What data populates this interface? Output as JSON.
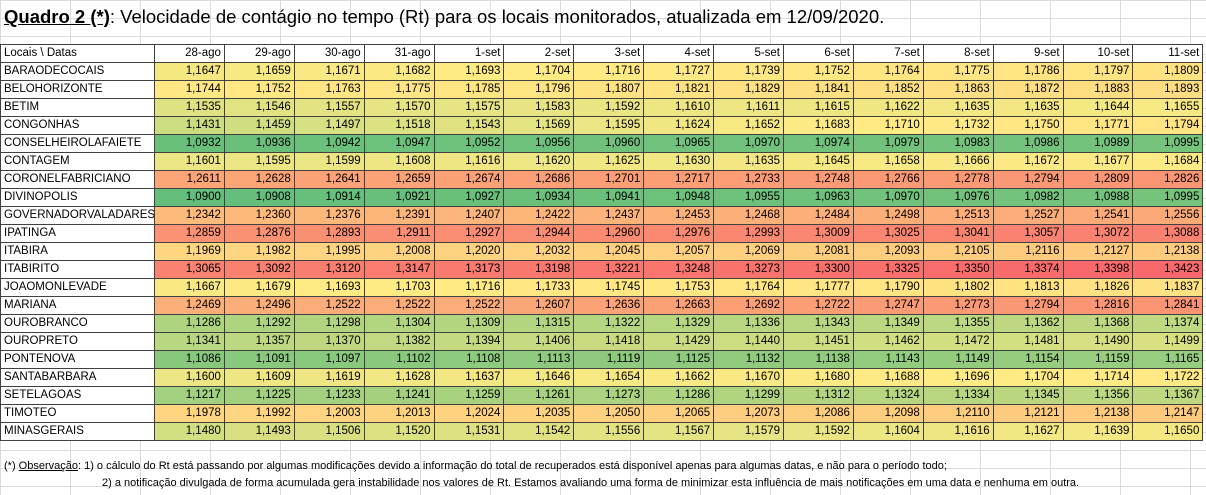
{
  "title": {
    "prefix": "Quadro 2 (*)",
    "text": ": Velocidade de contágio no tempo (Rt) para os locais monitorados,  atualizada em 12/09/2020."
  },
  "table": {
    "corner": "Locais   \\  Datas",
    "dates": [
      "28-ago",
      "29-ago",
      "30-ago",
      "31-ago",
      "1-set",
      "2-set",
      "3-set",
      "4-set",
      "5-set",
      "6-set",
      "7-set",
      "8-set",
      "9-set",
      "10-set",
      "11-set"
    ],
    "rows": [
      {
        "name": "BARAODECOCAIS",
        "values": [
          "1,1647",
          "1,1659",
          "1,1671",
          "1,1682",
          "1,1693",
          "1,1704",
          "1,1716",
          "1,1727",
          "1,1739",
          "1,1752",
          "1,1764",
          "1,1775",
          "1,1786",
          "1,1797",
          "1,1809"
        ]
      },
      {
        "name": "BELOHORIZONTE",
        "values": [
          "1,1744",
          "1,1752",
          "1,1763",
          "1,1775",
          "1,1785",
          "1,1796",
          "1,1807",
          "1,1821",
          "1,1829",
          "1,1841",
          "1,1852",
          "1,1863",
          "1,1872",
          "1,1883",
          "1,1893"
        ]
      },
      {
        "name": "BETIM",
        "values": [
          "1,1535",
          "1,1546",
          "1,1557",
          "1,1570",
          "1,1575",
          "1,1583",
          "1,1592",
          "1,1610",
          "1,1611",
          "1,1615",
          "1,1622",
          "1,1635",
          "1,1635",
          "1,1644",
          "1,1655"
        ]
      },
      {
        "name": "CONGONHAS",
        "values": [
          "1,1431",
          "1,1459",
          "1,1497",
          "1,1518",
          "1,1543",
          "1,1569",
          "1,1595",
          "1,1624",
          "1,1652",
          "1,1683",
          "1,1710",
          "1,1732",
          "1,1750",
          "1,1771",
          "1,1794"
        ]
      },
      {
        "name": "CONSELHEIROLAFAIETE",
        "values": [
          "1,0932",
          "1,0936",
          "1,0942",
          "1,0947",
          "1,0952",
          "1,0956",
          "1,0960",
          "1,0965",
          "1,0970",
          "1,0974",
          "1,0979",
          "1,0983",
          "1,0986",
          "1,0989",
          "1,0995"
        ]
      },
      {
        "name": "CONTAGEM",
        "values": [
          "1,1601",
          "1,1595",
          "1,1599",
          "1,1608",
          "1,1616",
          "1,1620",
          "1,1625",
          "1,1630",
          "1,1635",
          "1,1645",
          "1,1658",
          "1,1666",
          "1,1672",
          "1,1677",
          "1,1684"
        ]
      },
      {
        "name": "CORONELFABRICIANO",
        "values": [
          "1,2611",
          "1,2628",
          "1,2641",
          "1,2659",
          "1,2674",
          "1,2686",
          "1,2701",
          "1,2717",
          "1,2733",
          "1,2748",
          "1,2766",
          "1,2778",
          "1,2794",
          "1,2809",
          "1,2826"
        ]
      },
      {
        "name": "DIVINOPOLIS",
        "values": [
          "1,0900",
          "1,0908",
          "1,0914",
          "1,0921",
          "1,0927",
          "1,0934",
          "1,0941",
          "1,0948",
          "1,0955",
          "1,0963",
          "1,0970",
          "1,0976",
          "1,0982",
          "1,0988",
          "1,0995"
        ]
      },
      {
        "name": "GOVERNADORVALADARES",
        "values": [
          "1,2342",
          "1,2360",
          "1,2376",
          "1,2391",
          "1,2407",
          "1,2422",
          "1,2437",
          "1,2453",
          "1,2468",
          "1,2484",
          "1,2498",
          "1,2513",
          "1,2527",
          "1,2541",
          "1,2556"
        ]
      },
      {
        "name": "IPATINGA",
        "values": [
          "1,2859",
          "1,2876",
          "1,2893",
          "1,2911",
          "1,2927",
          "1,2944",
          "1,2960",
          "1,2976",
          "1,2993",
          "1,3009",
          "1,3025",
          "1,3041",
          "1,3057",
          "1,3072",
          "1,3088"
        ]
      },
      {
        "name": "ITABIRA",
        "values": [
          "1,1969",
          "1,1982",
          "1,1995",
          "1,2008",
          "1,2020",
          "1,2032",
          "1,2045",
          "1,2057",
          "1,2069",
          "1,2081",
          "1,2093",
          "1,2105",
          "1,2116",
          "1,2127",
          "1,2138"
        ]
      },
      {
        "name": "ITABIRITO",
        "values": [
          "1,3065",
          "1,3092",
          "1,3120",
          "1,3147",
          "1,3173",
          "1,3198",
          "1,3221",
          "1,3248",
          "1,3273",
          "1,3300",
          "1,3325",
          "1,3350",
          "1,3374",
          "1,3398",
          "1,3423"
        ]
      },
      {
        "name": "JOAOMONLEVADE",
        "values": [
          "1,1667",
          "1,1679",
          "1,1693",
          "1,1703",
          "1,1716",
          "1,1733",
          "1,1745",
          "1,1753",
          "1,1764",
          "1,1777",
          "1,1790",
          "1,1802",
          "1,1813",
          "1,1826",
          "1,1837"
        ]
      },
      {
        "name": "MARIANA",
        "values": [
          "1,2469",
          "1,2496",
          "1,2522",
          "1,2522",
          "1,2522",
          "1,2607",
          "1,2636",
          "1,2663",
          "1,2692",
          "1,2722",
          "1,2747",
          "1,2773",
          "1,2794",
          "1,2816",
          "1,2841"
        ]
      },
      {
        "name": "OUROBRANCO",
        "values": [
          "1,1286",
          "1,1292",
          "1,1298",
          "1,1304",
          "1,1309",
          "1,1315",
          "1,1322",
          "1,1329",
          "1,1336",
          "1,1343",
          "1,1349",
          "1,1355",
          "1,1362",
          "1,1368",
          "1,1374"
        ]
      },
      {
        "name": "OUROPRETO",
        "values": [
          "1,1341",
          "1,1357",
          "1,1370",
          "1,1382",
          "1,1394",
          "1,1406",
          "1,1418",
          "1,1429",
          "1,1440",
          "1,1451",
          "1,1462",
          "1,1472",
          "1,1481",
          "1,1490",
          "1,1499"
        ]
      },
      {
        "name": "PONTENOVA",
        "values": [
          "1,1086",
          "1,1091",
          "1,1097",
          "1,1102",
          "1,1108",
          "1,1113",
          "1,1119",
          "1,1125",
          "1,1132",
          "1,1138",
          "1,1143",
          "1,1149",
          "1,1154",
          "1,1159",
          "1,1165"
        ]
      },
      {
        "name": "SANTABARBARA",
        "values": [
          "1,1600",
          "1,1609",
          "1,1619",
          "1,1628",
          "1,1637",
          "1,1646",
          "1,1654",
          "1,1662",
          "1,1670",
          "1,1680",
          "1,1688",
          "1,1696",
          "1,1704",
          "1,1714",
          "1,1722"
        ]
      },
      {
        "name": "SETELAGOAS",
        "values": [
          "1,1217",
          "1,1225",
          "1,1233",
          "1,1241",
          "1,1259",
          "1,1261",
          "1,1273",
          "1,1286",
          "1,1299",
          "1,1312",
          "1,1324",
          "1,1334",
          "1,1345",
          "1,1356",
          "1,1367"
        ]
      },
      {
        "name": "TIMOTEO",
        "values": [
          "1,1978",
          "1,1992",
          "1,2003",
          "1,2013",
          "1,2024",
          "1,2035",
          "1,2050",
          "1,2065",
          "1,2073",
          "1,2086",
          "1,2098",
          "1,2110",
          "1,2121",
          "1,2138",
          "1,2147"
        ]
      },
      {
        "name": "MINASGERAIS",
        "values": [
          "1,1480",
          "1,1493",
          "1,1506",
          "1,1520",
          "1,1531",
          "1,1542",
          "1,1556",
          "1,1567",
          "1,1579",
          "1,1592",
          "1,1604",
          "1,1616",
          "1,1627",
          "1,1639",
          "1,1650"
        ]
      }
    ],
    "color_scale": {
      "min": 1.09,
      "mid": 1.17,
      "max": 1.34,
      "low_color": "#63be7b",
      "mid_color": "#ffeb84",
      "high_color": "#f8696b"
    }
  },
  "notes": {
    "star": "(*) ",
    "obs_label": "Observação",
    "line1": ": 1) o cálculo do Rt está passando por algumas modificações devido a informação do total de recuperados está disponível apenas para algumas datas, e não para o período todo;",
    "line2": "2) a notificação divulgada de forma acumulada gera instabilidade nos valores de Rt. Estamos avaliando uma forma de minimizar esta influência de mais notificações em uma data e nenhuma em outra."
  }
}
